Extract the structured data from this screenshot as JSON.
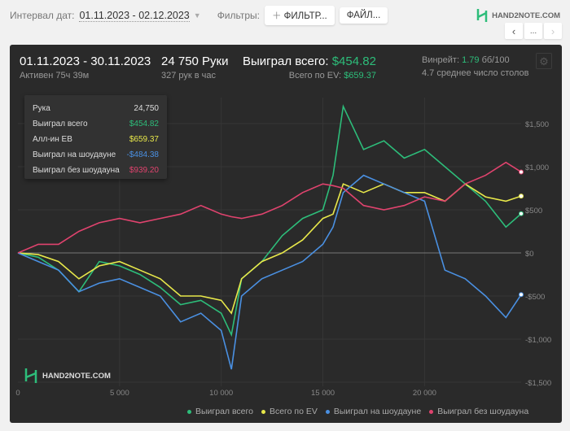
{
  "toolbar": {
    "date_label": "Интервал дат:",
    "date_value": "01.11.2023 - 02.12.2023",
    "filters_label": "Фильтры:",
    "filter_button": "ФИЛЬТР...",
    "file_button": "ФАЙЛ...",
    "logo": "HAND2NOTE.COM",
    "nav_more": "..."
  },
  "summary": {
    "period": "01.11.2023 - 30.11.2023",
    "active": "Активен 75ч 39м",
    "hands": "24 750 Руки",
    "hands_per_hour": "327 рук в час",
    "won_label": "Выиграл всего:",
    "won_value": "$454.82",
    "ev_label": "Всего по EV:",
    "ev_value": "$659.37",
    "winrate_label": "Винрейт:",
    "winrate_value": "1.79",
    "winrate_unit": "бб/100",
    "tables": "4.7 среднее число столов"
  },
  "tooltip": [
    {
      "label": "Рука",
      "value": "24,750",
      "color": "#dddddd"
    },
    {
      "label": "Выиграл всего",
      "value": "$454.82",
      "color": "#2dbd7a"
    },
    {
      "label": "Алл-ин EB",
      "value": "$659.37",
      "color": "#e8e84a"
    },
    {
      "label": "Выиграл на шоудауне",
      "value": "-$484.38",
      "color": "#4a90e2"
    },
    {
      "label": "Выиграл без шоудауна",
      "value": "$939.20",
      "color": "#e0436e"
    }
  ],
  "watermark": "HAND2NOTE.COM",
  "chart_data": {
    "type": "line",
    "xlabel": "",
    "ylabel": "",
    "xlim": [
      0,
      24750
    ],
    "ylim": [
      -1500,
      1800
    ],
    "x_ticks": [
      {
        "v": 0,
        "label": "0"
      },
      {
        "v": 5000,
        "label": "5 000"
      },
      {
        "v": 10000,
        "label": "10 000"
      },
      {
        "v": 15000,
        "label": "15 000"
      },
      {
        "v": 20000,
        "label": "20 000"
      }
    ],
    "y_ticks": [
      {
        "v": 1500,
        "label": "$1,500"
      },
      {
        "v": 1000,
        "label": "$1,000"
      },
      {
        "v": 500,
        "label": "$500"
      },
      {
        "v": 0,
        "label": "$0"
      },
      {
        "v": -500,
        "label": "-$500"
      },
      {
        "v": -1000,
        "label": "-$1,000"
      },
      {
        "v": -1500,
        "label": "-$1,500"
      }
    ],
    "x": [
      0,
      1000,
      2000,
      3000,
      4000,
      5000,
      6000,
      7000,
      8000,
      9000,
      10000,
      10500,
      11000,
      12000,
      13000,
      14000,
      15000,
      15500,
      16000,
      17000,
      18000,
      19000,
      20000,
      21000,
      22000,
      23000,
      24000,
      24750
    ],
    "series": [
      {
        "name": "Выиграл всего",
        "color": "#2dbd7a",
        "values": [
          0,
          -50,
          -200,
          -450,
          -100,
          -150,
          -250,
          -400,
          -600,
          -550,
          -700,
          -950,
          -300,
          -100,
          200,
          400,
          500,
          900,
          1700,
          1200,
          1300,
          1100,
          1200,
          1000,
          800,
          600,
          300,
          455
        ]
      },
      {
        "name": "Всего по EV",
        "color": "#e8e84a",
        "values": [
          0,
          -20,
          -100,
          -300,
          -150,
          -100,
          -200,
          -300,
          -500,
          -500,
          -550,
          -700,
          -300,
          -100,
          0,
          150,
          400,
          450,
          800,
          700,
          800,
          700,
          700,
          600,
          800,
          650,
          600,
          659
        ]
      },
      {
        "name": "Выиграл на шоудауне",
        "color": "#4a90e2",
        "values": [
          0,
          -100,
          -200,
          -450,
          -350,
          -300,
          -400,
          -500,
          -800,
          -700,
          -900,
          -1350,
          -500,
          -300,
          -200,
          -100,
          100,
          300,
          700,
          900,
          800,
          700,
          600,
          -200,
          -300,
          -500,
          -750,
          -484
        ]
      },
      {
        "name": "Выиграл без шоудауна",
        "color": "#e0436e",
        "values": [
          0,
          100,
          100,
          250,
          350,
          400,
          350,
          400,
          450,
          550,
          450,
          420,
          400,
          450,
          550,
          700,
          800,
          780,
          750,
          550,
          500,
          550,
          650,
          600,
          800,
          900,
          1050,
          939
        ]
      }
    ]
  }
}
